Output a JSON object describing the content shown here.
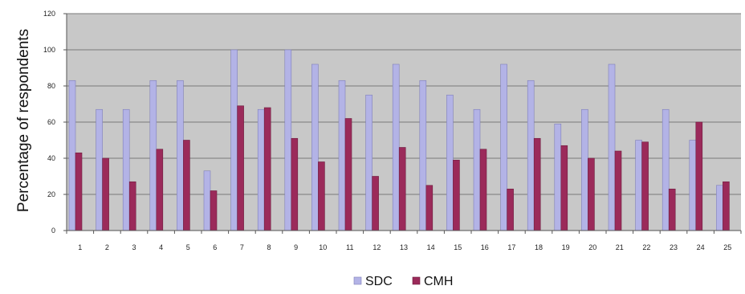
{
  "chart_data": {
    "type": "bar",
    "title": "",
    "xlabel": "",
    "ylabel": "Percentage of respondents",
    "ylim": [
      0,
      120
    ],
    "yticks": [
      0,
      20,
      40,
      60,
      80,
      100,
      120
    ],
    "grid": true,
    "legend_position": "bottom",
    "categories": [
      "1",
      "2",
      "3",
      "4",
      "5",
      "6",
      "7",
      "8",
      "9",
      "10",
      "11",
      "12",
      "13",
      "14",
      "15",
      "16",
      "17",
      "18",
      "19",
      "20",
      "21",
      "22",
      "23",
      "24",
      "25"
    ],
    "series": [
      {
        "name": "SDC",
        "color": "#b3b3e6",
        "values": [
          83,
          67,
          67,
          83,
          83,
          33,
          100,
          67,
          100,
          92,
          83,
          75,
          92,
          83,
          75,
          67,
          92,
          83,
          59,
          67,
          92,
          50,
          67,
          50,
          25
        ]
      },
      {
        "name": "CMH",
        "color": "#9b2a5a",
        "values": [
          43,
          40,
          27,
          45,
          50,
          22,
          69,
          68,
          51,
          38,
          62,
          30,
          46,
          25,
          39,
          45,
          23,
          51,
          47,
          40,
          44,
          49,
          23,
          60,
          27
        ]
      }
    ]
  },
  "colors": {
    "plot_background": "#c8c8c8",
    "gridline": "#7a7a7a",
    "axis": "#555555"
  }
}
